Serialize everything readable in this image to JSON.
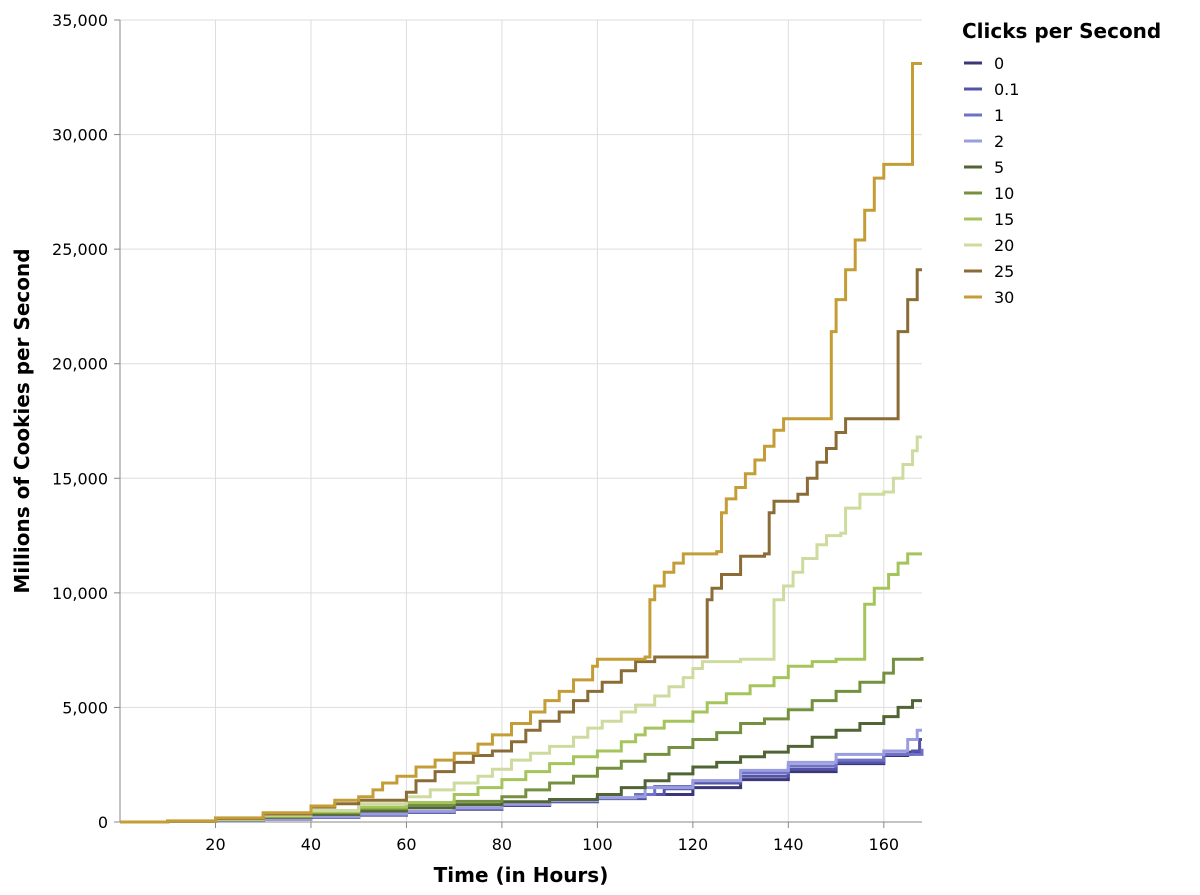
{
  "chart_data": {
    "type": "line",
    "interpolation": "step",
    "xlabel": "Time (in Hours)",
    "ylabel": "Millions of Cookies per Second",
    "xlim": [
      0,
      168
    ],
    "ylim": [
      0,
      35000
    ],
    "x_ticks": [
      20,
      40,
      60,
      80,
      100,
      120,
      140,
      160
    ],
    "y_ticks": [
      0,
      5000,
      10000,
      15000,
      20000,
      25000,
      30000,
      35000
    ],
    "x_tick_labels": [
      "20",
      "40",
      "60",
      "80",
      "100",
      "120",
      "140",
      "160"
    ],
    "y_tick_labels": [
      "0",
      "5,000",
      "10,000",
      "15,000",
      "20,000",
      "25,000",
      "30,000",
      "35,000"
    ],
    "grid": true,
    "legend": {
      "title": "Clicks per Second",
      "placement": "right"
    },
    "series": [
      {
        "name": "0",
        "color": "#3b3677",
        "points": [
          [
            0,
            0
          ],
          [
            10,
            20
          ],
          [
            20,
            60
          ],
          [
            30,
            120
          ],
          [
            40,
            200
          ],
          [
            50,
            300
          ],
          [
            60,
            420
          ],
          [
            70,
            560
          ],
          [
            80,
            720
          ],
          [
            90,
            880
          ],
          [
            100,
            1020
          ],
          [
            110,
            1200
          ],
          [
            120,
            1500
          ],
          [
            130,
            1850
          ],
          [
            140,
            2200
          ],
          [
            150,
            2550
          ],
          [
            160,
            2900
          ],
          [
            165,
            3050
          ],
          [
            168,
            3050
          ]
        ]
      },
      {
        "name": "0.1",
        "color": "#5354a8",
        "points": [
          [
            0,
            0
          ],
          [
            10,
            20
          ],
          [
            20,
            60
          ],
          [
            30,
            130
          ],
          [
            40,
            210
          ],
          [
            50,
            320
          ],
          [
            60,
            440
          ],
          [
            70,
            580
          ],
          [
            80,
            740
          ],
          [
            90,
            900
          ],
          [
            100,
            1040
          ],
          [
            110,
            1200
          ],
          [
            114,
            1450
          ],
          [
            120,
            1700
          ],
          [
            130,
            2000
          ],
          [
            140,
            2300
          ],
          [
            150,
            2600
          ],
          [
            160,
            2950
          ],
          [
            166,
            3100
          ],
          [
            167.5,
            3600
          ],
          [
            168,
            3600
          ]
        ]
      },
      {
        "name": "1",
        "color": "#6e71c6",
        "points": [
          [
            0,
            0
          ],
          [
            10,
            20
          ],
          [
            20,
            60
          ],
          [
            30,
            130
          ],
          [
            40,
            220
          ],
          [
            50,
            330
          ],
          [
            60,
            450
          ],
          [
            70,
            600
          ],
          [
            80,
            760
          ],
          [
            90,
            920
          ],
          [
            100,
            1060
          ],
          [
            108,
            1200
          ],
          [
            112,
            1550
          ],
          [
            120,
            1800
          ],
          [
            130,
            2150
          ],
          [
            140,
            2450
          ],
          [
            150,
            2700
          ],
          [
            160,
            2950
          ],
          [
            168,
            3200
          ]
        ]
      },
      {
        "name": "2",
        "color": "#9a9ee0",
        "points": [
          [
            0,
            0
          ],
          [
            10,
            20
          ],
          [
            20,
            60
          ],
          [
            30,
            130
          ],
          [
            40,
            230
          ],
          [
            50,
            350
          ],
          [
            60,
            470
          ],
          [
            70,
            620
          ],
          [
            80,
            780
          ],
          [
            90,
            940
          ],
          [
            100,
            1050
          ],
          [
            108,
            1100
          ],
          [
            110,
            1500
          ],
          [
            120,
            1800
          ],
          [
            130,
            2250
          ],
          [
            140,
            2600
          ],
          [
            150,
            2950
          ],
          [
            160,
            3100
          ],
          [
            165,
            3600
          ],
          [
            167,
            4000
          ],
          [
            168,
            4000
          ]
        ]
      },
      {
        "name": "5",
        "color": "#506434",
        "points": [
          [
            0,
            0
          ],
          [
            10,
            30
          ],
          [
            20,
            90
          ],
          [
            30,
            200
          ],
          [
            40,
            330
          ],
          [
            50,
            480
          ],
          [
            60,
            620
          ],
          [
            70,
            760
          ],
          [
            80,
            880
          ],
          [
            90,
            980
          ],
          [
            100,
            1200
          ],
          [
            105,
            1500
          ],
          [
            110,
            1800
          ],
          [
            115,
            2100
          ],
          [
            120,
            2400
          ],
          [
            125,
            2600
          ],
          [
            130,
            2850
          ],
          [
            135,
            3050
          ],
          [
            140,
            3300
          ],
          [
            145,
            3700
          ],
          [
            150,
            4000
          ],
          [
            155,
            4300
          ],
          [
            160,
            4600
          ],
          [
            163,
            5000
          ],
          [
            166,
            5300
          ],
          [
            168,
            5300
          ]
        ]
      },
      {
        "name": "10",
        "color": "#75903e",
        "points": [
          [
            0,
            0
          ],
          [
            10,
            30
          ],
          [
            20,
            100
          ],
          [
            30,
            230
          ],
          [
            40,
            400
          ],
          [
            50,
            580
          ],
          [
            60,
            760
          ],
          [
            70,
            900
          ],
          [
            80,
            1100
          ],
          [
            85,
            1400
          ],
          [
            90,
            1700
          ],
          [
            95,
            2000
          ],
          [
            100,
            2350
          ],
          [
            105,
            2650
          ],
          [
            110,
            2950
          ],
          [
            115,
            3250
          ],
          [
            120,
            3600
          ],
          [
            125,
            3900
          ],
          [
            130,
            4300
          ],
          [
            135,
            4500
          ],
          [
            140,
            4900
          ],
          [
            145,
            5300
          ],
          [
            150,
            5700
          ],
          [
            155,
            6100
          ],
          [
            160,
            6500
          ],
          [
            162,
            7100
          ],
          [
            168,
            7200
          ]
        ]
      },
      {
        "name": "15",
        "color": "#a5c55c",
        "points": [
          [
            0,
            0
          ],
          [
            10,
            30
          ],
          [
            20,
            110
          ],
          [
            30,
            260
          ],
          [
            40,
            450
          ],
          [
            50,
            650
          ],
          [
            60,
            850
          ],
          [
            70,
            1200
          ],
          [
            75,
            1500
          ],
          [
            80,
            1850
          ],
          [
            85,
            2200
          ],
          [
            90,
            2550
          ],
          [
            95,
            2850
          ],
          [
            100,
            3100
          ],
          [
            105,
            3500
          ],
          [
            108,
            3800
          ],
          [
            110,
            4100
          ],
          [
            114,
            4400
          ],
          [
            120,
            4800
          ],
          [
            123,
            5200
          ],
          [
            127,
            5600
          ],
          [
            132,
            5950
          ],
          [
            137,
            6300
          ],
          [
            140,
            6800
          ],
          [
            145,
            7000
          ],
          [
            150,
            7100
          ],
          [
            155,
            7100
          ],
          [
            156,
            9500
          ],
          [
            158,
            10200
          ],
          [
            161,
            10800
          ],
          [
            163,
            11300
          ],
          [
            165,
            11700
          ],
          [
            168,
            11700
          ]
        ]
      },
      {
        "name": "20",
        "color": "#cedb9f",
        "points": [
          [
            0,
            0
          ],
          [
            10,
            40
          ],
          [
            20,
            120
          ],
          [
            30,
            300
          ],
          [
            40,
            500
          ],
          [
            50,
            800
          ],
          [
            60,
            1100
          ],
          [
            65,
            1400
          ],
          [
            70,
            1700
          ],
          [
            75,
            2000
          ],
          [
            78,
            2300
          ],
          [
            82,
            2700
          ],
          [
            86,
            3000
          ],
          [
            90,
            3300
          ],
          [
            95,
            3700
          ],
          [
            98,
            4100
          ],
          [
            101,
            4400
          ],
          [
            105,
            4800
          ],
          [
            108,
            5100
          ],
          [
            112,
            5500
          ],
          [
            115,
            5900
          ],
          [
            118,
            6300
          ],
          [
            120,
            6700
          ],
          [
            122,
            7000
          ],
          [
            130,
            7100
          ],
          [
            136,
            7100
          ],
          [
            137,
            9700
          ],
          [
            139,
            10300
          ],
          [
            141,
            10900
          ],
          [
            143,
            11500
          ],
          [
            146,
            12100
          ],
          [
            148,
            12500
          ],
          [
            151,
            12600
          ],
          [
            152,
            13700
          ],
          [
            155,
            14300
          ],
          [
            160,
            14400
          ],
          [
            162,
            15000
          ],
          [
            164,
            15600
          ],
          [
            166,
            16200
          ],
          [
            167,
            16800
          ],
          [
            168,
            16800
          ]
        ]
      },
      {
        "name": "25",
        "color": "#8b6b36",
        "points": [
          [
            0,
            0
          ],
          [
            10,
            40
          ],
          [
            20,
            150
          ],
          [
            30,
            350
          ],
          [
            40,
            650
          ],
          [
            45,
            800
          ],
          [
            50,
            950
          ],
          [
            60,
            1300
          ],
          [
            62,
            1800
          ],
          [
            66,
            2200
          ],
          [
            70,
            2600
          ],
          [
            74,
            2900
          ],
          [
            78,
            3100
          ],
          [
            82,
            3500
          ],
          [
            85,
            4000
          ],
          [
            88,
            4400
          ],
          [
            92,
            4800
          ],
          [
            95,
            5300
          ],
          [
            98,
            5700
          ],
          [
            101,
            6100
          ],
          [
            105,
            6600
          ],
          [
            108,
            7000
          ],
          [
            112,
            7200
          ],
          [
            122,
            7200
          ],
          [
            123,
            9700
          ],
          [
            124,
            10200
          ],
          [
            126,
            10800
          ],
          [
            130,
            11600
          ],
          [
            135,
            11700
          ],
          [
            136,
            13500
          ],
          [
            137,
            14000
          ],
          [
            142,
            14300
          ],
          [
            144,
            15000
          ],
          [
            146,
            15700
          ],
          [
            148,
            16300
          ],
          [
            150,
            17000
          ],
          [
            152,
            17600
          ],
          [
            160,
            17600
          ],
          [
            163,
            21400
          ],
          [
            165,
            22800
          ],
          [
            167,
            24100
          ],
          [
            168,
            24100
          ]
        ]
      },
      {
        "name": "30",
        "color": "#c49d37",
        "points": [
          [
            0,
            0
          ],
          [
            10,
            50
          ],
          [
            20,
            180
          ],
          [
            30,
            400
          ],
          [
            40,
            700
          ],
          [
            45,
            950
          ],
          [
            50,
            1100
          ],
          [
            53,
            1400
          ],
          [
            55,
            1700
          ],
          [
            58,
            2000
          ],
          [
            62,
            2400
          ],
          [
            66,
            2700
          ],
          [
            70,
            3000
          ],
          [
            75,
            3400
          ],
          [
            78,
            3800
          ],
          [
            82,
            4300
          ],
          [
            86,
            4800
          ],
          [
            89,
            5300
          ],
          [
            92,
            5700
          ],
          [
            95,
            6200
          ],
          [
            99,
            6800
          ],
          [
            100,
            7100
          ],
          [
            110,
            7200
          ],
          [
            111,
            9700
          ],
          [
            112,
            10300
          ],
          [
            114,
            10900
          ],
          [
            116,
            11300
          ],
          [
            118,
            11700
          ],
          [
            125,
            11800
          ],
          [
            126,
            13500
          ],
          [
            127,
            14100
          ],
          [
            129,
            14600
          ],
          [
            131,
            15200
          ],
          [
            133,
            15800
          ],
          [
            135,
            16400
          ],
          [
            137,
            17100
          ],
          [
            139,
            17600
          ],
          [
            148,
            17600
          ],
          [
            149,
            21400
          ],
          [
            150,
            22800
          ],
          [
            152,
            24100
          ],
          [
            154,
            25400
          ],
          [
            156,
            26700
          ],
          [
            158,
            28100
          ],
          [
            160,
            28700
          ],
          [
            165,
            28700
          ],
          [
            166,
            33100
          ],
          [
            168,
            33100
          ]
        ]
      }
    ]
  }
}
